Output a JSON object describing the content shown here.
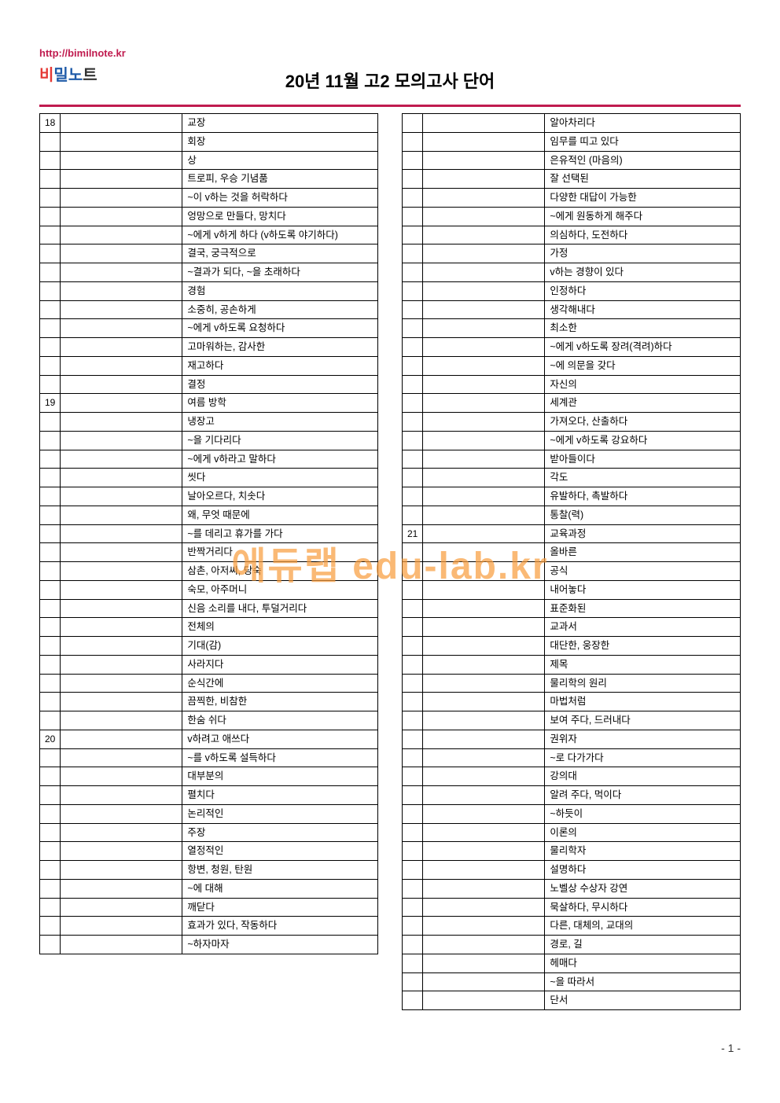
{
  "header": {
    "url": "http://bimilnote.kr",
    "logo_bi": "비",
    "logo_mil": "밀",
    "logo_no": "노",
    "logo_te": "트",
    "title": "20년 11월 고2 모의고사 단어"
  },
  "watermark": "에듀랩 edu-lab.kr",
  "page_number": "- 1 -",
  "colors": {
    "accent": "#c01b4f",
    "logo_red": "#e53935",
    "logo_blue": "#1e5aa8",
    "watermark": "#f89c3b"
  },
  "left_rows": [
    {
      "num": "18",
      "term": "",
      "def": "교장"
    },
    {
      "num": "",
      "term": "",
      "def": "회장"
    },
    {
      "num": "",
      "term": "",
      "def": "상"
    },
    {
      "num": "",
      "term": "",
      "def": "트로피, 우승 기념품"
    },
    {
      "num": "",
      "term": "",
      "def": "~이 v하는 것을 허락하다"
    },
    {
      "num": "",
      "term": "",
      "def": "엉망으로 만들다, 망치다"
    },
    {
      "num": "",
      "term": "",
      "def": "~에게 v하게 하다 (v하도록 야기하다)"
    },
    {
      "num": "",
      "term": "",
      "def": "결국, 궁극적으로"
    },
    {
      "num": "",
      "term": "",
      "def": "~결과가 되다, ~을 초래하다"
    },
    {
      "num": "",
      "term": "",
      "def": "경험"
    },
    {
      "num": "",
      "term": "",
      "def": "소중히, 공손하게"
    },
    {
      "num": "",
      "term": "",
      "def": "~에게 v하도록 요청하다"
    },
    {
      "num": "",
      "term": "",
      "def": "고마워하는, 감사한"
    },
    {
      "num": "",
      "term": "",
      "def": "재고하다"
    },
    {
      "num": "",
      "term": "",
      "def": "결정"
    },
    {
      "num": "19",
      "term": "",
      "def": "여름 방학"
    },
    {
      "num": "",
      "term": "",
      "def": "냉장고"
    },
    {
      "num": "",
      "term": "",
      "def": "~을 기다리다"
    },
    {
      "num": "",
      "term": "",
      "def": "~에게 v하라고 말하다"
    },
    {
      "num": "",
      "term": "",
      "def": "씻다"
    },
    {
      "num": "",
      "term": "",
      "def": "날아오르다, 치솟다"
    },
    {
      "num": "",
      "term": "",
      "def": "왜, 무엇 때문에"
    },
    {
      "num": "",
      "term": "",
      "def": "~를 데리고 휴가를 가다"
    },
    {
      "num": "",
      "term": "",
      "def": "반짝거리다"
    },
    {
      "num": "",
      "term": "",
      "def": "삼촌, 아저씨, 당숙"
    },
    {
      "num": "",
      "term": "",
      "def": "숙모, 아주머니"
    },
    {
      "num": "",
      "term": "",
      "def": "신음 소리를 내다, 투덜거리다"
    },
    {
      "num": "",
      "term": "",
      "def": "전체의"
    },
    {
      "num": "",
      "term": "",
      "def": "기대(감)"
    },
    {
      "num": "",
      "term": "",
      "def": "사라지다"
    },
    {
      "num": "",
      "term": "",
      "def": "순식간에"
    },
    {
      "num": "",
      "term": "",
      "def": "끔찍한, 비참한"
    },
    {
      "num": "",
      "term": "",
      "def": "한숨 쉬다"
    },
    {
      "num": "20",
      "term": "",
      "def": "v하려고 애쓰다"
    },
    {
      "num": "",
      "term": "",
      "def": "~를 v하도록 설득하다"
    },
    {
      "num": "",
      "term": "",
      "def": "대부분의"
    },
    {
      "num": "",
      "term": "",
      "def": "펼치다"
    },
    {
      "num": "",
      "term": "",
      "def": "논리적인"
    },
    {
      "num": "",
      "term": "",
      "def": "주장"
    },
    {
      "num": "",
      "term": "",
      "def": "열정적인"
    },
    {
      "num": "",
      "term": "",
      "def": "항변, 청원, 탄원"
    },
    {
      "num": "",
      "term": "",
      "def": "~에 대해"
    },
    {
      "num": "",
      "term": "",
      "def": "깨닫다"
    },
    {
      "num": "",
      "term": "",
      "def": "효과가 있다, 작동하다"
    },
    {
      "num": "",
      "term": "",
      "def": "~하자마자"
    }
  ],
  "right_rows": [
    {
      "num": "",
      "term": "",
      "def": "알아차리다"
    },
    {
      "num": "",
      "term": "",
      "def": "임무를 띠고 있다"
    },
    {
      "num": "",
      "term": "",
      "def": "은유적인 (마음의)"
    },
    {
      "num": "",
      "term": "",
      "def": "잘 선택된"
    },
    {
      "num": "",
      "term": "",
      "def": "다양한 대답이 가능한"
    },
    {
      "num": "",
      "term": "",
      "def": "~에게 원동하게 해주다"
    },
    {
      "num": "",
      "term": "",
      "def": "의심하다, 도전하다"
    },
    {
      "num": "",
      "term": "",
      "def": "가정"
    },
    {
      "num": "",
      "term": "",
      "def": "v하는 경향이 있다"
    },
    {
      "num": "",
      "term": "",
      "def": "인정하다"
    },
    {
      "num": "",
      "term": "",
      "def": "생각해내다"
    },
    {
      "num": "",
      "term": "",
      "def": "최소한"
    },
    {
      "num": "",
      "term": "",
      "def": "~에게 v하도록 장려(격려)하다"
    },
    {
      "num": "",
      "term": "",
      "def": "~에 의문을 갖다"
    },
    {
      "num": "",
      "term": "",
      "def": "자신의"
    },
    {
      "num": "",
      "term": "",
      "def": "세계관"
    },
    {
      "num": "",
      "term": "",
      "def": "가져오다, 산출하다"
    },
    {
      "num": "",
      "term": "",
      "def": "~에게 v하도록 강요하다"
    },
    {
      "num": "",
      "term": "",
      "def": "받아들이다"
    },
    {
      "num": "",
      "term": "",
      "def": "각도"
    },
    {
      "num": "",
      "term": "",
      "def": "유발하다, 촉발하다"
    },
    {
      "num": "",
      "term": "",
      "def": "통찰(력)"
    },
    {
      "num": "21",
      "term": "",
      "def": "교육과정"
    },
    {
      "num": "",
      "term": "",
      "def": "올바른"
    },
    {
      "num": "",
      "term": "",
      "def": "공식"
    },
    {
      "num": "",
      "term": "",
      "def": "내어놓다"
    },
    {
      "num": "",
      "term": "",
      "def": "표준화된"
    },
    {
      "num": "",
      "term": "",
      "def": "교과서"
    },
    {
      "num": "",
      "term": "",
      "def": "대단한, 웅장한"
    },
    {
      "num": "",
      "term": "",
      "def": "제목"
    },
    {
      "num": "",
      "term": "",
      "def": "물리학의 원리"
    },
    {
      "num": "",
      "term": "",
      "def": "마법처럼"
    },
    {
      "num": "",
      "term": "",
      "def": "보여 주다, 드러내다"
    },
    {
      "num": "",
      "term": "",
      "def": "권위자"
    },
    {
      "num": "",
      "term": "",
      "def": "~로 다가가다"
    },
    {
      "num": "",
      "term": "",
      "def": "강의대"
    },
    {
      "num": "",
      "term": "",
      "def": "알려 주다, 먹이다"
    },
    {
      "num": "",
      "term": "",
      "def": "~하듯이"
    },
    {
      "num": "",
      "term": "",
      "def": "이론의"
    },
    {
      "num": "",
      "term": "",
      "def": "물리학자"
    },
    {
      "num": "",
      "term": "",
      "def": "설명하다"
    },
    {
      "num": "",
      "term": "",
      "def": "노벨상 수상자 강연"
    },
    {
      "num": "",
      "term": "",
      "def": "묵살하다, 무시하다"
    },
    {
      "num": "",
      "term": "",
      "def": "다른, 대체의, 교대의"
    },
    {
      "num": "",
      "term": "",
      "def": "경로, 길"
    },
    {
      "num": "",
      "term": "",
      "def": "헤매다"
    },
    {
      "num": "",
      "term": "",
      "def": "~을 따라서"
    },
    {
      "num": "",
      "term": "",
      "def": "단서"
    }
  ]
}
